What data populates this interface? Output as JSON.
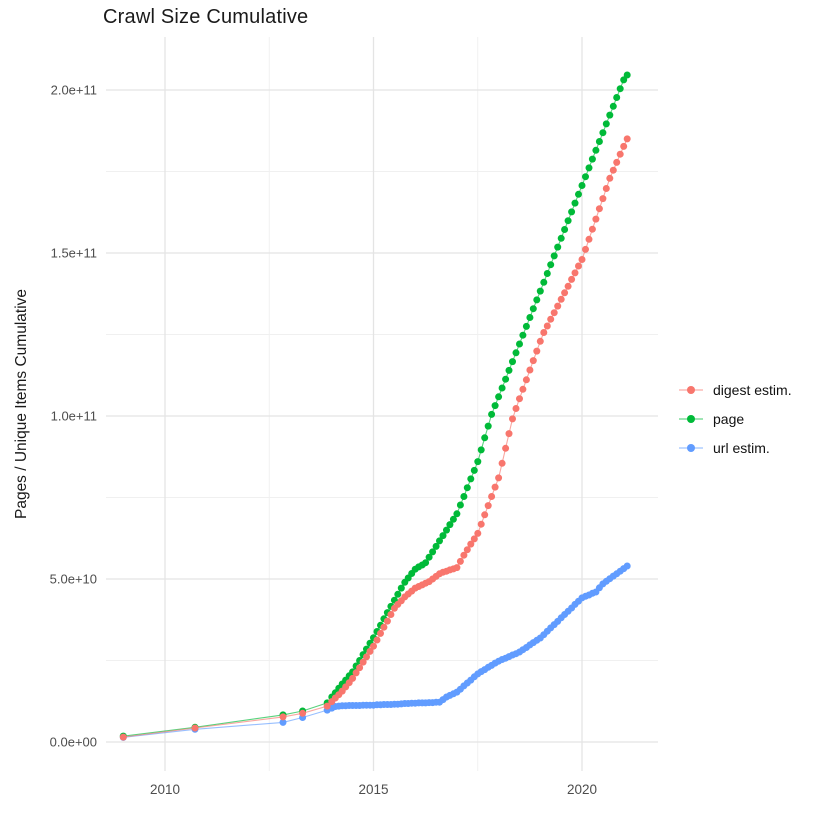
{
  "title": "Crawl Size Cumulative",
  "y_axis": {
    "label": "Pages / Unique Items Cumulative",
    "tick_labels": [
      "0.0e+00",
      "5.0e+10",
      "1.0e+11",
      "1.5e+11",
      "2.0e+11"
    ],
    "tick_values_e9": [
      0,
      50,
      100,
      150,
      200
    ],
    "minor_values_e9": [
      25,
      75,
      125,
      175
    ]
  },
  "x_axis": {
    "tick_labels": [
      "2010",
      "2015",
      "2020"
    ],
    "tick_values": [
      2010,
      2015,
      2020
    ],
    "minor_values": [
      2012.5,
      2017.5
    ]
  },
  "legend": {
    "items": [
      {
        "label": "digest estim.",
        "color": "#F8766D"
      },
      {
        "label": "page",
        "color": "#00BA38"
      },
      {
        "label": "url estim.",
        "color": "#619CFF"
      }
    ]
  },
  "colors": {
    "digest": "#F8766D",
    "page": "#00BA38",
    "url": "#619CFF",
    "grid_major": "#e4e4e4",
    "grid_minor": "#f0f0f0",
    "tick_label": "#4d4d4d"
  },
  "chart_data": {
    "type": "scatter",
    "title": "Crawl Size Cumulative",
    "xlabel": "",
    "ylabel": "Pages / Unique Items Cumulative",
    "value_unit": "1e9",
    "xlim": [
      2008.6,
      2021.8
    ],
    "ylim_e9": [
      -9,
      217
    ],
    "grid": true,
    "legend_position": "right",
    "draw_order": [
      "page",
      "url estim.",
      "digest estim."
    ],
    "series": [
      {
        "name": "digest estim.",
        "color": "#F8766D",
        "points": [
          [
            2009,
            1.5
          ],
          [
            2010.72,
            4.3
          ],
          [
            2012.83,
            7.7
          ],
          [
            2013.3,
            8.8
          ],
          [
            2013.89,
            11
          ],
          [
            2014,
            12.4
          ],
          [
            2014.083,
            13.5
          ],
          [
            2014.167,
            14.5
          ],
          [
            2014.25,
            15.6
          ],
          [
            2014.333,
            16.9
          ],
          [
            2014.417,
            18.2
          ],
          [
            2014.5,
            19.5
          ],
          [
            2014.583,
            21.2
          ],
          [
            2014.667,
            22.8
          ],
          [
            2014.75,
            24.5
          ],
          [
            2014.833,
            26.1
          ],
          [
            2014.917,
            27.8
          ],
          [
            2015,
            29.4
          ],
          [
            2015.083,
            31.3
          ],
          [
            2015.167,
            33.3
          ],
          [
            2015.25,
            35.2
          ],
          [
            2015.333,
            37.1
          ],
          [
            2015.417,
            39.1
          ],
          [
            2015.5,
            41
          ],
          [
            2015.583,
            42.2
          ],
          [
            2015.667,
            43.3
          ],
          [
            2015.75,
            44.5
          ],
          [
            2015.833,
            45.4
          ],
          [
            2015.917,
            46.3
          ],
          [
            2016,
            47.2
          ],
          [
            2016.083,
            47.7
          ],
          [
            2016.167,
            48.2
          ],
          [
            2016.25,
            48.7
          ],
          [
            2016.333,
            49.2
          ],
          [
            2016.417,
            50
          ],
          [
            2016.5,
            50.8
          ],
          [
            2016.583,
            51.6
          ],
          [
            2016.667,
            52.1
          ],
          [
            2016.75,
            52.4
          ],
          [
            2016.833,
            52.8
          ],
          [
            2016.917,
            53.1
          ],
          [
            2017,
            53.5
          ],
          [
            2017.083,
            55.4
          ],
          [
            2017.167,
            57.3
          ],
          [
            2017.25,
            59
          ],
          [
            2017.333,
            60.7
          ],
          [
            2017.417,
            62.3
          ],
          [
            2017.5,
            64
          ],
          [
            2017.583,
            66.8
          ],
          [
            2017.667,
            69.7
          ],
          [
            2017.75,
            72.5
          ],
          [
            2017.833,
            75.3
          ],
          [
            2017.917,
            78.2
          ],
          [
            2018,
            81
          ],
          [
            2018.083,
            85.5
          ],
          [
            2018.167,
            90.1
          ],
          [
            2018.25,
            94.6
          ],
          [
            2018.333,
            99.1
          ],
          [
            2018.417,
            102.3
          ],
          [
            2018.5,
            105.3
          ],
          [
            2018.583,
            108.2
          ],
          [
            2018.667,
            111.1
          ],
          [
            2018.75,
            114.1
          ],
          [
            2018.833,
            117
          ],
          [
            2018.917,
            119.9
          ],
          [
            2019,
            122.9
          ],
          [
            2019.083,
            125.6
          ],
          [
            2019.167,
            127.6
          ],
          [
            2019.25,
            129.7
          ],
          [
            2019.333,
            131.7
          ],
          [
            2019.417,
            133.7
          ],
          [
            2019.5,
            135.8
          ],
          [
            2019.583,
            137.8
          ],
          [
            2019.667,
            139.8
          ],
          [
            2019.75,
            141.9
          ],
          [
            2019.833,
            143.9
          ],
          [
            2019.917,
            146
          ],
          [
            2020,
            148
          ],
          [
            2020.083,
            151.1
          ],
          [
            2020.167,
            154.2
          ],
          [
            2020.25,
            157.3
          ],
          [
            2020.333,
            160.4
          ],
          [
            2020.417,
            163.6
          ],
          [
            2020.5,
            166.7
          ],
          [
            2020.583,
            169.8
          ],
          [
            2020.667,
            172.9
          ],
          [
            2020.75,
            175.4
          ],
          [
            2020.833,
            177.8
          ],
          [
            2020.917,
            180.3
          ],
          [
            2021,
            182.7
          ],
          [
            2021.083,
            185
          ]
        ]
      },
      {
        "name": "page",
        "color": "#00BA38",
        "points": [
          [
            2009,
            1.8
          ],
          [
            2010.72,
            4.5
          ],
          [
            2012.83,
            8.3
          ],
          [
            2013.3,
            9.5
          ],
          [
            2013.89,
            12
          ],
          [
            2014,
            13.8
          ],
          [
            2014.083,
            15.1
          ],
          [
            2014.167,
            16.5
          ],
          [
            2014.25,
            17.8
          ],
          [
            2014.333,
            19
          ],
          [
            2014.417,
            20.3
          ],
          [
            2014.5,
            21.5
          ],
          [
            2014.583,
            23.3
          ],
          [
            2014.667,
            25
          ],
          [
            2014.75,
            26.8
          ],
          [
            2014.833,
            28.5
          ],
          [
            2014.917,
            30.3
          ],
          [
            2015,
            32
          ],
          [
            2015.083,
            33.9
          ],
          [
            2015.167,
            35.8
          ],
          [
            2015.25,
            37.8
          ],
          [
            2015.333,
            39.7
          ],
          [
            2015.417,
            41.6
          ],
          [
            2015.5,
            43.5
          ],
          [
            2015.583,
            45.3
          ],
          [
            2015.667,
            47.2
          ],
          [
            2015.75,
            49
          ],
          [
            2015.833,
            50.3
          ],
          [
            2015.917,
            51.7
          ],
          [
            2016,
            53
          ],
          [
            2016.083,
            53.7
          ],
          [
            2016.167,
            54.3
          ],
          [
            2016.25,
            55
          ],
          [
            2016.333,
            56.7
          ],
          [
            2016.417,
            58.3
          ],
          [
            2016.5,
            60
          ],
          [
            2016.583,
            61.7
          ],
          [
            2016.667,
            63.3
          ],
          [
            2016.75,
            65
          ],
          [
            2016.833,
            66.7
          ],
          [
            2016.917,
            68.3
          ],
          [
            2017,
            70
          ],
          [
            2017.083,
            72.7
          ],
          [
            2017.167,
            75.3
          ],
          [
            2017.25,
            78
          ],
          [
            2017.333,
            80.7
          ],
          [
            2017.417,
            83.3
          ],
          [
            2017.5,
            86
          ],
          [
            2017.583,
            89.6
          ],
          [
            2017.667,
            93.3
          ],
          [
            2017.75,
            96.9
          ],
          [
            2017.833,
            100.5
          ],
          [
            2017.917,
            103.2
          ],
          [
            2018,
            105.9
          ],
          [
            2018.083,
            108.6
          ],
          [
            2018.167,
            111.3
          ],
          [
            2018.25,
            114
          ],
          [
            2018.333,
            116.7
          ],
          [
            2018.417,
            119.4
          ],
          [
            2018.5,
            122.1
          ],
          [
            2018.583,
            124.8
          ],
          [
            2018.667,
            127.5
          ],
          [
            2018.75,
            130.2
          ],
          [
            2018.833,
            132.9
          ],
          [
            2018.917,
            135.6
          ],
          [
            2019,
            138.3
          ],
          [
            2019.083,
            141
          ],
          [
            2019.167,
            143.7
          ],
          [
            2019.25,
            146.4
          ],
          [
            2019.333,
            149.1
          ],
          [
            2019.417,
            151.8
          ],
          [
            2019.5,
            154.5
          ],
          [
            2019.583,
            157.2
          ],
          [
            2019.667,
            159.9
          ],
          [
            2019.75,
            162.6
          ],
          [
            2019.833,
            165.3
          ],
          [
            2019.917,
            168
          ],
          [
            2020,
            170.7
          ],
          [
            2020.083,
            173.4
          ],
          [
            2020.167,
            176.1
          ],
          [
            2020.25,
            178.8
          ],
          [
            2020.333,
            181.5
          ],
          [
            2020.417,
            184.2
          ],
          [
            2020.5,
            186.9
          ],
          [
            2020.583,
            189.6
          ],
          [
            2020.667,
            192.3
          ],
          [
            2020.75,
            195
          ],
          [
            2020.833,
            197.7
          ],
          [
            2020.917,
            200.4
          ],
          [
            2021,
            203.1
          ],
          [
            2021.083,
            204.6
          ]
        ]
      },
      {
        "name": "url estim.",
        "color": "#619CFF",
        "points": [
          [
            2009,
            1.4
          ],
          [
            2010.72,
            3.9
          ],
          [
            2012.83,
            6
          ],
          [
            2013.3,
            7.5
          ],
          [
            2013.89,
            9.8
          ],
          [
            2014,
            10.4
          ],
          [
            2014.083,
            10.9
          ],
          [
            2014.167,
            11
          ],
          [
            2014.25,
            11.1
          ],
          [
            2014.333,
            11.1
          ],
          [
            2014.417,
            11.2
          ],
          [
            2014.5,
            11.2
          ],
          [
            2014.583,
            11.2
          ],
          [
            2014.667,
            11.2
          ],
          [
            2014.75,
            11.3
          ],
          [
            2014.833,
            11.3
          ],
          [
            2014.917,
            11.3
          ],
          [
            2015,
            11.3
          ],
          [
            2015.083,
            11.4
          ],
          [
            2015.167,
            11.4
          ],
          [
            2015.25,
            11.5
          ],
          [
            2015.333,
            11.5
          ],
          [
            2015.417,
            11.5
          ],
          [
            2015.5,
            11.6
          ],
          [
            2015.583,
            11.6
          ],
          [
            2015.667,
            11.7
          ],
          [
            2015.75,
            11.8
          ],
          [
            2015.833,
            11.8
          ],
          [
            2015.917,
            11.9
          ],
          [
            2016,
            11.9
          ],
          [
            2016.083,
            12
          ],
          [
            2016.167,
            12
          ],
          [
            2016.25,
            12
          ],
          [
            2016.333,
            12.1
          ],
          [
            2016.417,
            12.1
          ],
          [
            2016.5,
            12.2
          ],
          [
            2016.583,
            12.2
          ],
          [
            2016.667,
            13
          ],
          [
            2016.75,
            13.8
          ],
          [
            2016.833,
            14.3
          ],
          [
            2016.917,
            14.8
          ],
          [
            2017,
            15.3
          ],
          [
            2017.083,
            16.2
          ],
          [
            2017.167,
            17.2
          ],
          [
            2017.25,
            18.1
          ],
          [
            2017.333,
            19
          ],
          [
            2017.417,
            20
          ],
          [
            2017.5,
            20.9
          ],
          [
            2017.583,
            21.6
          ],
          [
            2017.667,
            22.2
          ],
          [
            2017.75,
            22.9
          ],
          [
            2017.833,
            23.5
          ],
          [
            2017.917,
            24.2
          ],
          [
            2018,
            24.8
          ],
          [
            2018.083,
            25.3
          ],
          [
            2018.167,
            25.7
          ],
          [
            2018.25,
            26.2
          ],
          [
            2018.333,
            26.7
          ],
          [
            2018.417,
            27.1
          ],
          [
            2018.5,
            27.6
          ],
          [
            2018.583,
            28.3
          ],
          [
            2018.667,
            29
          ],
          [
            2018.75,
            29.8
          ],
          [
            2018.833,
            30.5
          ],
          [
            2018.917,
            31.2
          ],
          [
            2019,
            31.9
          ],
          [
            2019.083,
            32.9
          ],
          [
            2019.167,
            34
          ],
          [
            2019.25,
            35
          ],
          [
            2019.333,
            36
          ],
          [
            2019.417,
            37
          ],
          [
            2019.5,
            38.1
          ],
          [
            2019.583,
            39.1
          ],
          [
            2019.667,
            40.1
          ],
          [
            2019.75,
            41.1
          ],
          [
            2019.833,
            42.2
          ],
          [
            2019.917,
            43.2
          ],
          [
            2020,
            44.2
          ],
          [
            2020.083,
            44.7
          ],
          [
            2020.167,
            45.1
          ],
          [
            2020.25,
            45.6
          ],
          [
            2020.333,
            46
          ],
          [
            2020.417,
            47.3
          ],
          [
            2020.5,
            48.5
          ],
          [
            2020.583,
            49.3
          ],
          [
            2020.667,
            50.1
          ],
          [
            2020.75,
            50.9
          ],
          [
            2020.833,
            51.6
          ],
          [
            2020.917,
            52.4
          ],
          [
            2021,
            53.2
          ],
          [
            2021.083,
            54
          ]
        ]
      }
    ]
  }
}
